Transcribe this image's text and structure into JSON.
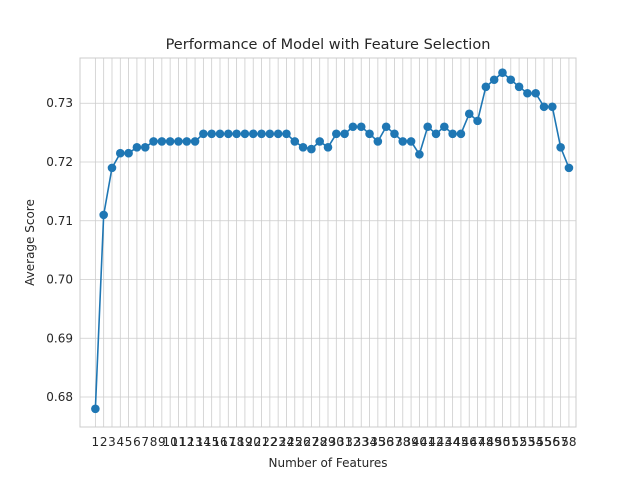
{
  "chart_data": {
    "type": "line",
    "title": "Performance of Model with Feature Selection",
    "xlabel": "Number of Features",
    "ylabel": "Average Score",
    "x": [
      1,
      2,
      3,
      4,
      5,
      6,
      7,
      8,
      9,
      10,
      11,
      12,
      13,
      14,
      15,
      16,
      17,
      18,
      19,
      20,
      21,
      22,
      23,
      24,
      25,
      26,
      27,
      28,
      29,
      30,
      31,
      32,
      33,
      34,
      35,
      36,
      37,
      38,
      39,
      40,
      41,
      42,
      43,
      44,
      45,
      46,
      47,
      48,
      49,
      50,
      51,
      52,
      53,
      54,
      55,
      56,
      57,
      58
    ],
    "series": [
      {
        "values": [
          0.678,
          0.711,
          0.719,
          0.7215,
          0.7215,
          0.7225,
          0.7225,
          0.7235,
          0.7235,
          0.7235,
          0.7235,
          0.7235,
          0.7235,
          0.7248,
          0.7248,
          0.7248,
          0.7248,
          0.7248,
          0.7248,
          0.7248,
          0.7248,
          0.7248,
          0.7248,
          0.7248,
          0.7235,
          0.7225,
          0.7222,
          0.7235,
          0.7225,
          0.7248,
          0.7248,
          0.726,
          0.726,
          0.7248,
          0.7235,
          0.726,
          0.7248,
          0.7235,
          0.7235,
          0.7213,
          0.726,
          0.7248,
          0.726,
          0.7248,
          0.7248,
          0.7282,
          0.727,
          0.7328,
          0.734,
          0.7352,
          0.734,
          0.7328,
          0.7317,
          0.7317,
          0.7294,
          0.7294,
          0.7225,
          0.719
        ]
      }
    ],
    "yticks": [
      0.68,
      0.69,
      0.7,
      0.71,
      0.72,
      0.73
    ],
    "ytick_labels": [
      "0.68",
      "0.69",
      "0.70",
      "0.71",
      "0.72",
      "0.73"
    ],
    "xlim": [
      -0.85,
      58.85
    ],
    "ylim": [
      0.6749,
      0.7377
    ],
    "grid": true,
    "line_color": "#1f77b4",
    "marker_color": "#1f77b4"
  }
}
